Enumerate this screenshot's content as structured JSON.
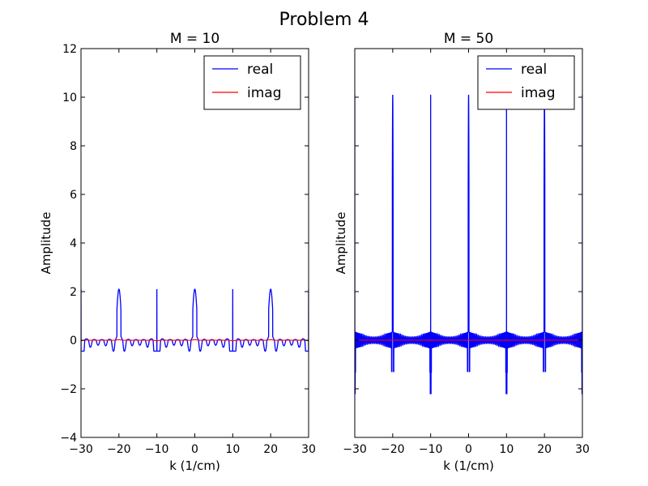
{
  "figure": {
    "suptitle": "Problem 4"
  },
  "chart_data": [
    {
      "type": "line",
      "title": "M = 10",
      "xlabel": "k (1/cm)",
      "ylabel": "Amplitude",
      "xlim": [
        -30,
        30
      ],
      "ylim": [
        -4,
        12
      ],
      "xticks": [
        -30,
        -20,
        -10,
        0,
        10,
        20,
        30
      ],
      "yticks": [
        -4,
        -2,
        0,
        2,
        4,
        6,
        8,
        10,
        12
      ],
      "show_ytick_labels": true,
      "legend": "top-right",
      "grid": false,
      "peak_x": [
        -30,
        -20,
        -10,
        0,
        10,
        20,
        30
      ],
      "series": [
        {
          "name": "real",
          "color": "#0000ff",
          "peak_value": 2.1,
          "min_value": -0.45,
          "near_zero_ripple": 0.15
        },
        {
          "name": "imag",
          "color": "#ff0000",
          "peak_value": 0.02,
          "min_value": -0.02,
          "near_zero_ripple": 0.02
        }
      ]
    },
    {
      "type": "line",
      "title": "M = 50",
      "xlabel": "k (1/cm)",
      "ylabel": "Amplitude",
      "xlim": [
        -30,
        30
      ],
      "ylim": [
        -4,
        12
      ],
      "xticks": [
        -30,
        -20,
        -10,
        0,
        10,
        20,
        30
      ],
      "yticks": [
        -4,
        -2,
        0,
        2,
        4,
        6,
        8,
        10,
        12
      ],
      "show_ytick_labels": false,
      "legend": "top-right",
      "grid": false,
      "peak_x": [
        -30,
        -20,
        -10,
        0,
        10,
        20,
        30
      ],
      "series": [
        {
          "name": "real",
          "color": "#0000ff",
          "peak_value": 10.1,
          "min_value": -2.2,
          "near_zero_ripple": 0.35
        },
        {
          "name": "imag",
          "color": "#ff0000",
          "peak_value": 0.02,
          "min_value": -0.02,
          "near_zero_ripple": 0.02
        }
      ]
    }
  ]
}
